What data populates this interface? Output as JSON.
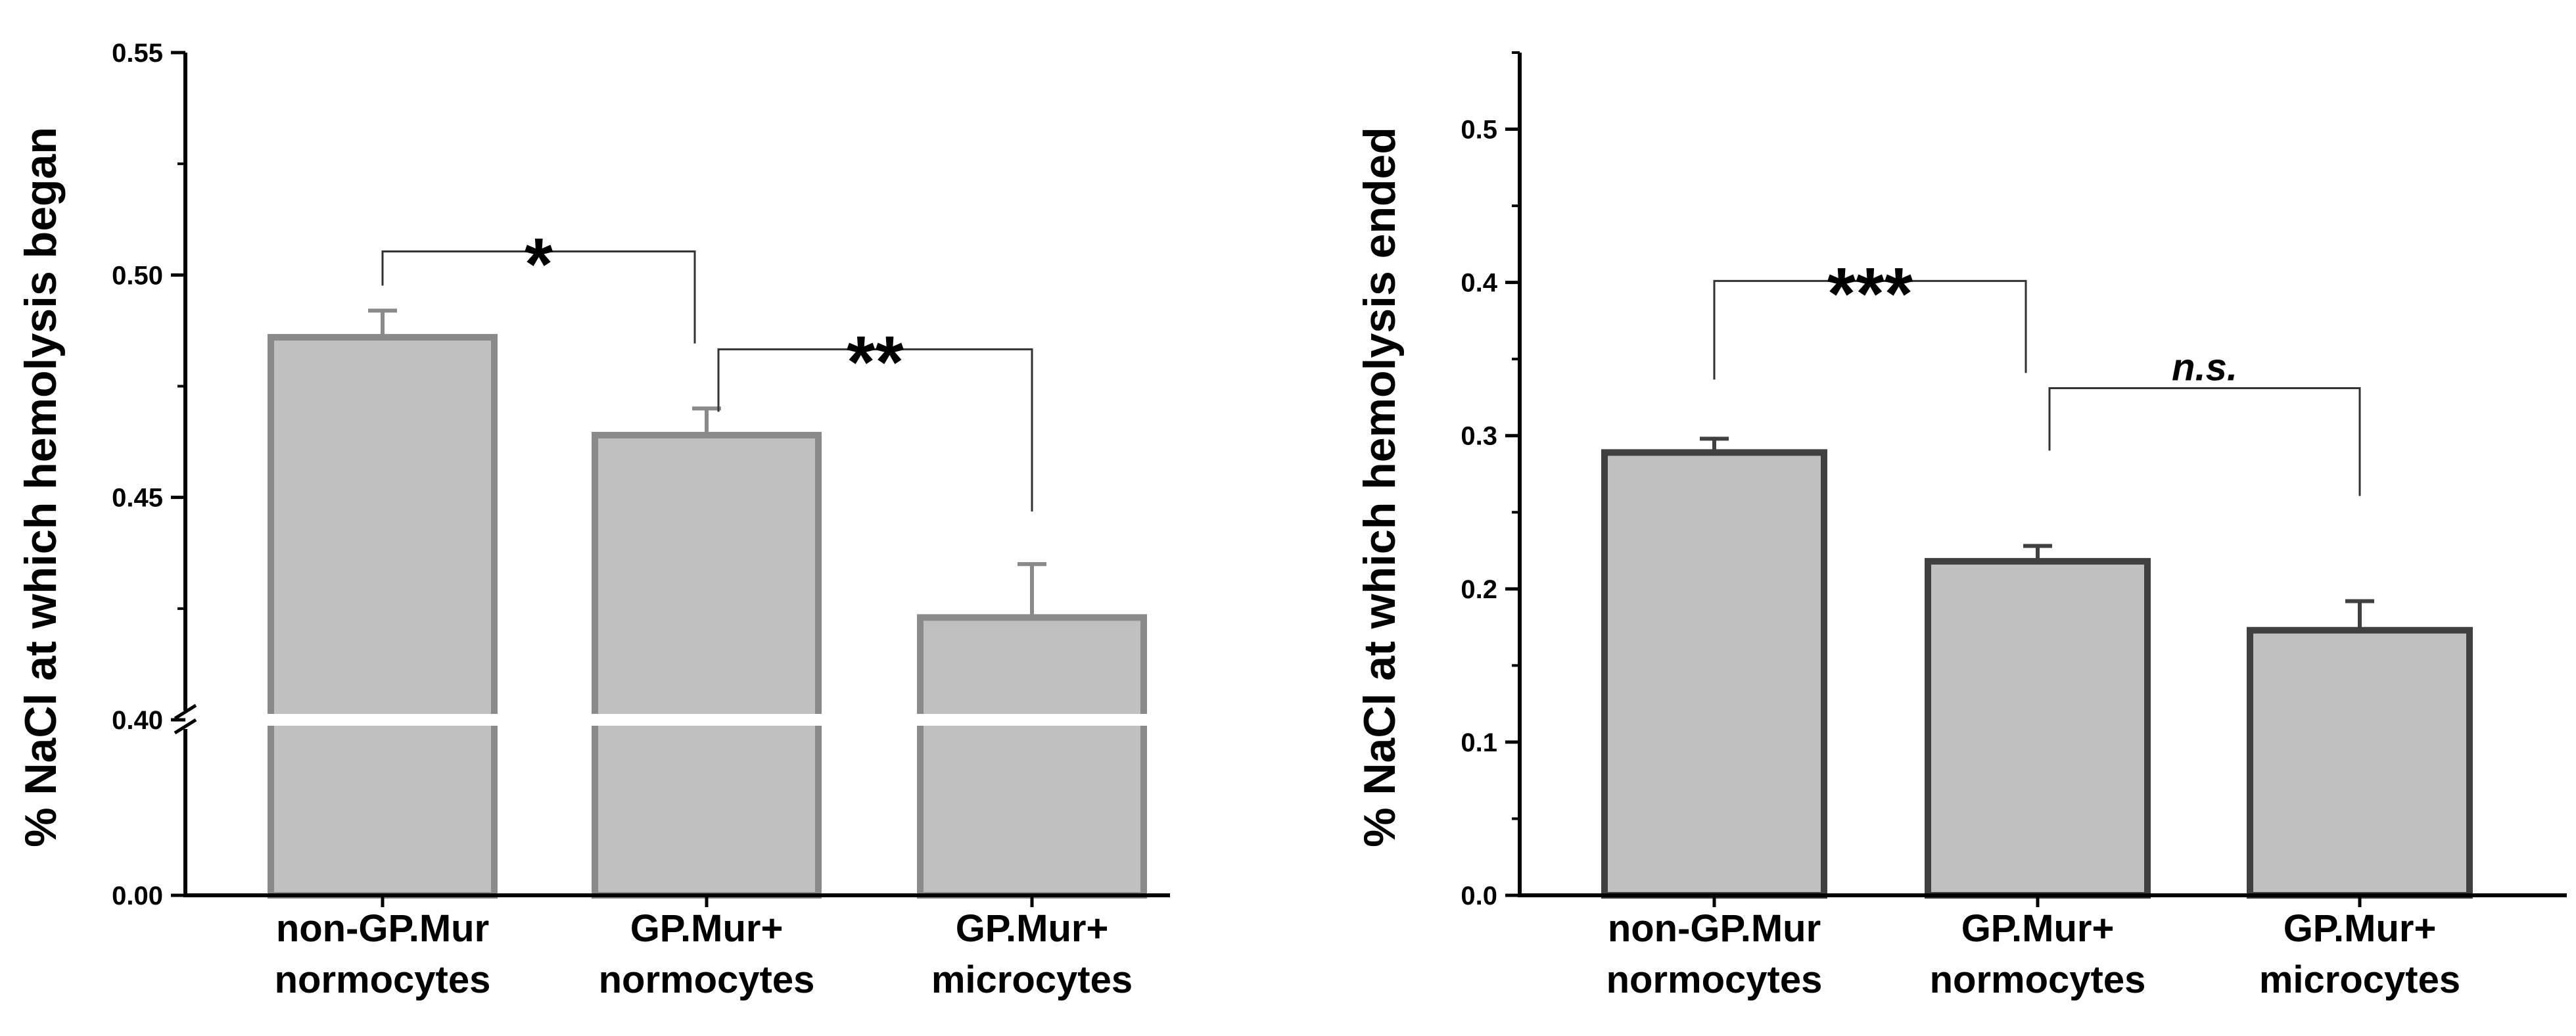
{
  "chart_data": [
    {
      "type": "bar",
      "title": "",
      "xlabel": "",
      "ylabel": "% NaCl at which hemolysis began",
      "categories": [
        "non-GP.Mur|normocytes",
        "GP.Mur+|normocytes",
        "GP.Mur+|microcytes"
      ],
      "values": [
        0.486,
        0.464,
        0.423
      ],
      "errors": [
        0.006,
        0.006,
        0.012
      ],
      "ylim": [
        0.4,
        0.55
      ],
      "axis_break": true,
      "yticks": [
        "0.00",
        "0.40",
        "0.45",
        "0.50",
        "0.55"
      ],
      "colors": {
        "bar_fill": "#c0c0c0",
        "bar_edge": "#8a8a8a"
      },
      "annotations": [
        {
          "from": 0,
          "to": 1,
          "label": "*",
          "style": "normal"
        },
        {
          "from": 1,
          "to": 2,
          "label": "**",
          "style": "normal"
        }
      ]
    },
    {
      "type": "bar",
      "title": "",
      "xlabel": "",
      "ylabel": "% NaCl at which hemolysis ended",
      "categories": [
        "non-GP.Mur|normocytes",
        "GP.Mur+|normocytes",
        "GP.Mur+|microcytes"
      ],
      "values": [
        0.289,
        0.218,
        0.173
      ],
      "errors": [
        0.009,
        0.01,
        0.019
      ],
      "ylim": [
        0.0,
        0.55
      ],
      "axis_break": false,
      "yticks": [
        "0.0",
        "0.1",
        "0.2",
        "0.3",
        "0.4",
        "0.5"
      ],
      "colors": {
        "bar_fill": "#c0c0c0",
        "bar_edge": "#404040"
      },
      "annotations": [
        {
          "from": 0,
          "to": 1,
          "label": "***",
          "style": "normal"
        },
        {
          "from": 1,
          "to": 2,
          "label": "n.s.",
          "style": "italic"
        }
      ]
    }
  ]
}
